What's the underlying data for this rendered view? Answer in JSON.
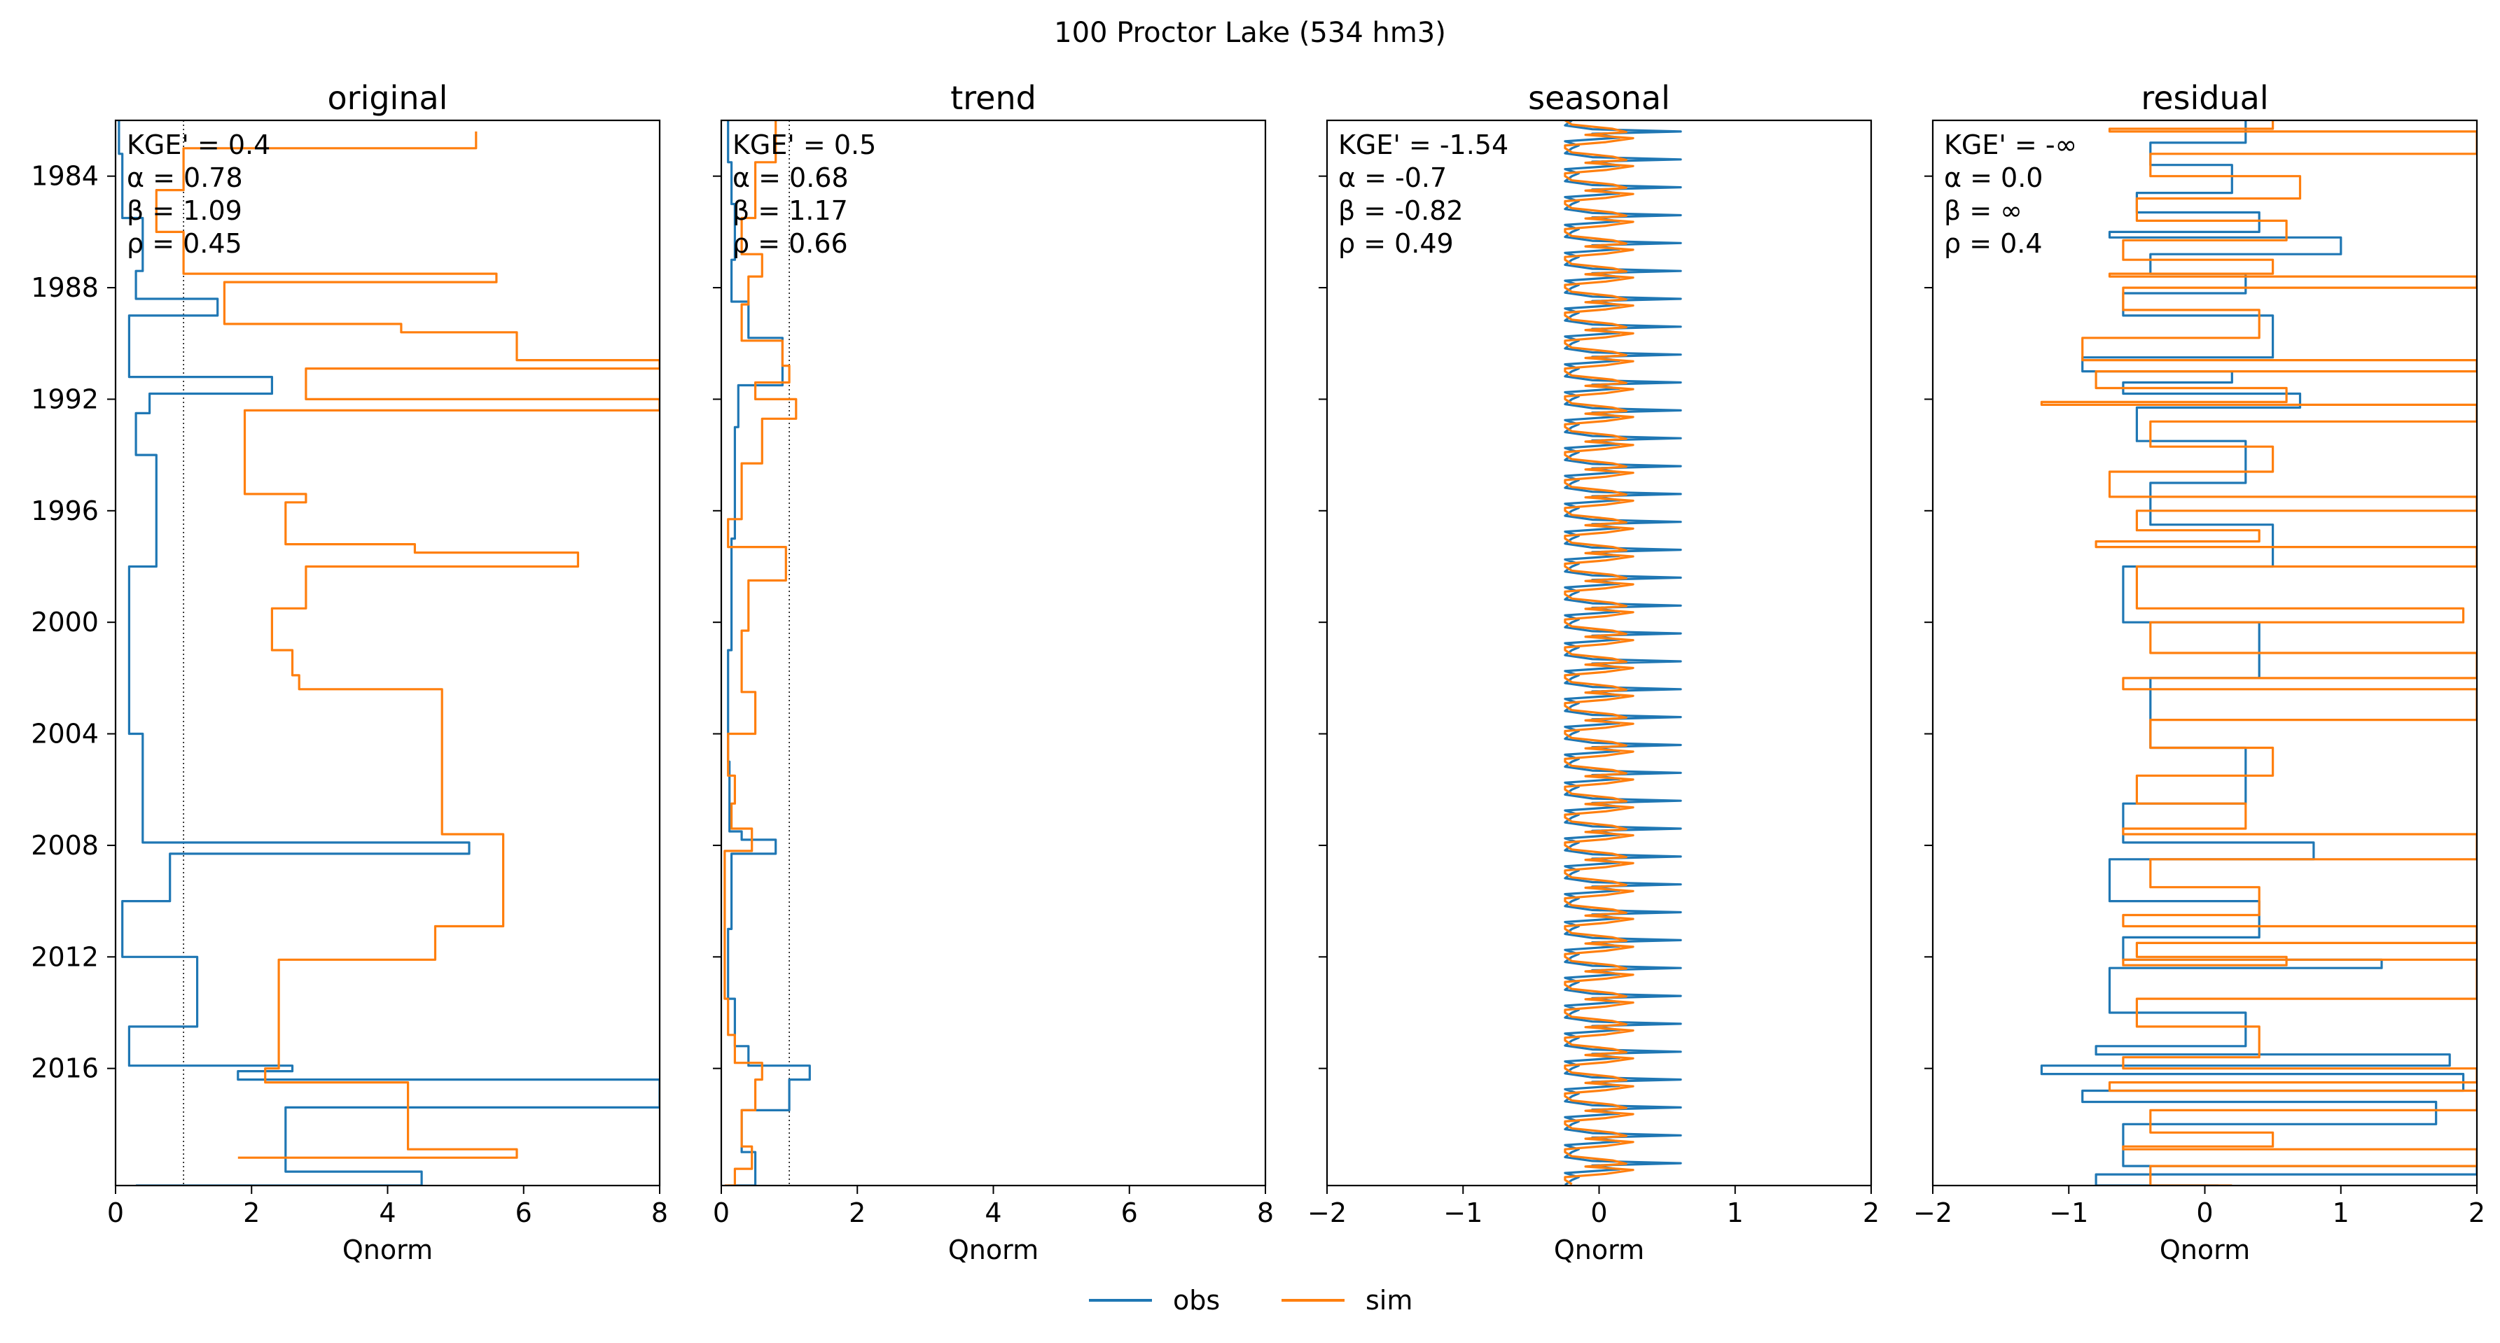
{
  "figure": {
    "suptitle": "100  Proctor Lake (534 hm3)",
    "legend": [
      {
        "label": "obs",
        "color": "#1f77b4"
      },
      {
        "label": "sim",
        "color": "#ff7f0e"
      }
    ]
  },
  "chart_data": [
    {
      "type": "line",
      "title": "original",
      "xlabel": "Qnorm",
      "xlim": [
        0,
        8
      ],
      "xticks": [
        0,
        2,
        4,
        6,
        8
      ],
      "ylim": [
        1982,
        2020.2
      ],
      "yticks": [
        1984,
        1988,
        1992,
        1996,
        2000,
        2004,
        2008,
        2012,
        2016
      ],
      "ref_line_x": 1,
      "metrics": [
        "KGE' = 0.4",
        "α = 0.78",
        "β = 1.09",
        "ρ = 0.45"
      ],
      "series": [
        {
          "name": "obs",
          "color": "#1f77b4",
          "points": [
            [
              0.05,
              1982.0
            ],
            [
              0.1,
              1983.2
            ],
            [
              0.4,
              1985.5
            ],
            [
              0.3,
              1987.4
            ],
            [
              1.5,
              1988.4
            ],
            [
              0.2,
              1989.0
            ],
            [
              2.3,
              1991.2
            ],
            [
              0.5,
              1991.8
            ],
            [
              0.3,
              1992.5
            ],
            [
              0.6,
              1994.0
            ],
            [
              0.2,
              1998.0
            ],
            [
              0.4,
              2004.0
            ],
            [
              5.2,
              2007.9
            ],
            [
              0.8,
              2008.3
            ],
            [
              0.1,
              2010.0
            ],
            [
              1.2,
              2012.0
            ],
            [
              0.2,
              2014.5
            ],
            [
              2.6,
              2015.9
            ],
            [
              1.8,
              2016.1
            ],
            [
              8.0,
              2016.4
            ],
            [
              2.5,
              2017.4
            ],
            [
              4.5,
              2019.7
            ],
            [
              0.3,
              2020.2
            ]
          ]
        },
        {
          "name": "sim",
          "color": "#ff7f0e",
          "points": [
            [
              5.3,
              1982.4
            ],
            [
              1.0,
              1983.0
            ],
            [
              0.6,
              1984.5
            ],
            [
              1.0,
              1986.0
            ],
            [
              5.6,
              1987.5
            ],
            [
              1.6,
              1987.8
            ],
            [
              4.2,
              1989.3
            ],
            [
              5.9,
              1989.6
            ],
            [
              8.0,
              1990.6
            ],
            [
              2.8,
              1990.9
            ],
            [
              8.0,
              1992.0
            ],
            [
              1.9,
              1992.4
            ],
            [
              2.8,
              1995.4
            ],
            [
              2.5,
              1995.7
            ],
            [
              4.4,
              1997.2
            ],
            [
              6.8,
              1997.5
            ],
            [
              2.8,
              1998.0
            ],
            [
              2.3,
              1999.5
            ],
            [
              2.6,
              2001.0
            ],
            [
              2.7,
              2001.9
            ],
            [
              4.8,
              2002.4
            ],
            [
              5.7,
              2007.6
            ],
            [
              4.7,
              2010.9
            ],
            [
              2.4,
              2012.1
            ],
            [
              2.2,
              2016.0
            ],
            [
              4.3,
              2016.5
            ],
            [
              5.9,
              2018.9
            ],
            [
              1.8,
              2019.2
            ]
          ]
        }
      ]
    },
    {
      "type": "line",
      "title": "trend",
      "xlabel": "Qnorm",
      "xlim": [
        0,
        8
      ],
      "xticks": [
        0,
        2,
        4,
        6,
        8
      ],
      "ylim": [
        1982,
        2020.2
      ],
      "ref_line_x": 1,
      "metrics": [
        "KGE' = 0.5",
        "α = 0.68",
        "β = 1.17",
        "ρ = 0.66"
      ],
      "series": [
        {
          "name": "obs",
          "color": "#1f77b4",
          "points": [
            [
              0.1,
              1982.0
            ],
            [
              0.15,
              1983.5
            ],
            [
              0.2,
              1985.0
            ],
            [
              0.15,
              1987.0
            ],
            [
              0.4,
              1988.5
            ],
            [
              0.9,
              1989.8
            ],
            [
              0.9,
              1990.6
            ],
            [
              0.25,
              1991.5
            ],
            [
              0.2,
              1993.0
            ],
            [
              0.15,
              1997.0
            ],
            [
              0.1,
              2001.0
            ],
            [
              0.12,
              2005.0
            ],
            [
              0.3,
              2007.5
            ],
            [
              0.8,
              2007.8
            ],
            [
              0.15,
              2008.3
            ],
            [
              0.1,
              2011.0
            ],
            [
              0.2,
              2013.5
            ],
            [
              0.4,
              2015.2
            ],
            [
              1.3,
              2015.9
            ],
            [
              1.0,
              2016.4
            ],
            [
              0.3,
              2017.5
            ],
            [
              0.5,
              2019.0
            ],
            [
              0.1,
              2020.2
            ]
          ]
        },
        {
          "name": "sim",
          "color": "#ff7f0e",
          "points": [
            [
              0.8,
              1982.0
            ],
            [
              0.5,
              1983.5
            ],
            [
              0.3,
              1985.5
            ],
            [
              0.6,
              1986.8
            ],
            [
              0.4,
              1987.6
            ],
            [
              0.3,
              1988.6
            ],
            [
              0.9,
              1989.9
            ],
            [
              1.0,
              1990.8
            ],
            [
              0.5,
              1991.4
            ],
            [
              1.1,
              1992.0
            ],
            [
              0.6,
              1992.7
            ],
            [
              0.3,
              1994.3
            ],
            [
              0.1,
              1996.3
            ],
            [
              0.95,
              1997.3
            ],
            [
              0.4,
              1998.5
            ],
            [
              0.3,
              2000.3
            ],
            [
              0.5,
              2002.5
            ],
            [
              0.1,
              2004.0
            ],
            [
              0.2,
              2005.5
            ],
            [
              0.15,
              2006.5
            ],
            [
              0.45,
              2007.4
            ],
            [
              0.05,
              2008.2
            ],
            [
              0.05,
              2012.0
            ],
            [
              0.1,
              2013.5
            ],
            [
              0.2,
              2014.8
            ],
            [
              0.6,
              2015.8
            ],
            [
              0.5,
              2016.4
            ],
            [
              0.3,
              2017.5
            ],
            [
              0.45,
              2018.8
            ],
            [
              0.2,
              2019.6
            ],
            [
              0.05,
              2020.2
            ]
          ]
        }
      ]
    },
    {
      "type": "line",
      "title": "seasonal",
      "xlabel": "Qnorm",
      "xlim": [
        -2,
        2
      ],
      "xticks": [
        -2,
        -1,
        0,
        1,
        2
      ],
      "ylim": [
        1982,
        2020.2
      ],
      "metrics": [
        "KGE' = -1.54",
        "α = -0.7",
        "β = -0.82",
        "ρ = 0.49"
      ],
      "series": [
        {
          "name": "obs",
          "color": "#1f77b4",
          "cycle": {
            "start": 1982.0,
            "end": 2020.2,
            "period": 1,
            "profile": [
              [
                -0.2,
                0
              ],
              [
                -0.25,
                0.18
              ],
              [
                -0.05,
                0.32
              ],
              [
                0.6,
                0.4
              ],
              [
                -0.05,
                0.48
              ],
              [
                0.15,
                0.62
              ],
              [
                -0.25,
                0.75
              ],
              [
                -0.15,
                0.9
              ],
              [
                -0.2,
                1
              ]
            ]
          }
        },
        {
          "name": "sim",
          "color": "#ff7f0e",
          "cycle": {
            "start": 1982.0,
            "end": 2020.2,
            "period": 1,
            "profile": [
              [
                -0.25,
                0
              ],
              [
                -0.2,
                0.15
              ],
              [
                0.1,
                0.3
              ],
              [
                0.2,
                0.42
              ],
              [
                -0.1,
                0.52
              ],
              [
                0.25,
                0.64
              ],
              [
                0.05,
                0.78
              ],
              [
                -0.25,
                0.9
              ],
              [
                -0.25,
                1
              ]
            ]
          }
        }
      ]
    },
    {
      "type": "line",
      "title": "residual",
      "xlabel": "Qnorm",
      "xlim": [
        -2,
        2
      ],
      "xticks": [
        -2,
        -1,
        0,
        1,
        2
      ],
      "ylim": [
        1982,
        2020.2
      ],
      "metrics": [
        "KGE' = -∞",
        "α = 0.0",
        "β = ∞",
        "ρ = 0.4"
      ],
      "series": [
        {
          "name": "obs",
          "color": "#1f77b4",
          "points": [
            [
              0.3,
              1982.0
            ],
            [
              -0.4,
              1982.8
            ],
            [
              0.2,
              1983.6
            ],
            [
              -0.5,
              1984.6
            ],
            [
              0.4,
              1985.3
            ],
            [
              -0.7,
              1986.0
            ],
            [
              1.0,
              1986.2
            ],
            [
              -0.4,
              1986.8
            ],
            [
              0.3,
              1987.5
            ],
            [
              -0.6,
              1988.2
            ],
            [
              0.5,
              1989.0
            ],
            [
              -0.9,
              1990.5
            ],
            [
              0.2,
              1991.0
            ],
            [
              -0.6,
              1991.4
            ],
            [
              0.7,
              1991.8
            ],
            [
              -0.5,
              1992.3
            ],
            [
              0.3,
              1993.5
            ],
            [
              -0.4,
              1995.0
            ],
            [
              0.5,
              1996.5
            ],
            [
              -0.6,
              1998.0
            ],
            [
              0.4,
              2000.0
            ],
            [
              -0.4,
              2002.0
            ],
            [
              0.3,
              2004.5
            ],
            [
              -0.6,
              2006.5
            ],
            [
              0.8,
              2007.9
            ],
            [
              -0.7,
              2008.5
            ],
            [
              0.4,
              2010.0
            ],
            [
              -0.6,
              2011.3
            ],
            [
              1.3,
              2012.1
            ],
            [
              -0.7,
              2012.4
            ],
            [
              0.3,
              2014.0
            ],
            [
              -0.8,
              2015.2
            ],
            [
              1.8,
              2015.5
            ],
            [
              -1.2,
              2015.9
            ],
            [
              1.9,
              2016.2
            ],
            [
              -0.9,
              2016.8
            ],
            [
              1.7,
              2017.2
            ],
            [
              -0.6,
              2018.0
            ],
            [
              2.0,
              2019.5
            ],
            [
              -0.8,
              2019.8
            ],
            [
              0.1,
              2020.2
            ]
          ]
        },
        {
          "name": "sim",
          "color": "#ff7f0e",
          "points": [
            [
              0.5,
              1982.0
            ],
            [
              -0.7,
              1982.3
            ],
            [
              2.0,
              1982.4
            ],
            [
              -0.4,
              1983.2
            ],
            [
              0.7,
              1984.0
            ],
            [
              -0.5,
              1984.8
            ],
            [
              0.6,
              1985.6
            ],
            [
              -0.6,
              1986.3
            ],
            [
              0.5,
              1987.0
            ],
            [
              -0.7,
              1987.5
            ],
            [
              2.0,
              1987.6
            ],
            [
              -0.6,
              1988.0
            ],
            [
              0.4,
              1988.8
            ],
            [
              -0.9,
              1989.8
            ],
            [
              2.0,
              1990.6
            ],
            [
              -0.8,
              1991.0
            ],
            [
              0.6,
              1991.6
            ],
            [
              -1.2,
              1992.1
            ],
            [
              2.0,
              1992.2
            ],
            [
              -0.4,
              1992.8
            ],
            [
              0.5,
              1993.7
            ],
            [
              -0.7,
              1994.6
            ],
            [
              2.0,
              1995.5
            ],
            [
              -0.5,
              1996.0
            ],
            [
              0.4,
              1996.7
            ],
            [
              -0.8,
              1997.1
            ],
            [
              2.0,
              1997.3
            ],
            [
              -0.5,
              1998.0
            ],
            [
              1.9,
              1999.5
            ],
            [
              -0.4,
              2000.0
            ],
            [
              2.0,
              2001.1
            ],
            [
              -0.6,
              2002.0
            ],
            [
              2.0,
              2002.4
            ],
            [
              -0.4,
              2003.5
            ],
            [
              0.5,
              2004.5
            ],
            [
              -0.5,
              2005.5
            ],
            [
              0.3,
              2006.5
            ],
            [
              -0.6,
              2007.4
            ],
            [
              2.0,
              2007.6
            ],
            [
              -0.4,
              2008.5
            ],
            [
              0.4,
              2009.5
            ],
            [
              -0.6,
              2010.5
            ],
            [
              2.0,
              2010.9
            ],
            [
              -0.5,
              2011.5
            ],
            [
              0.6,
              2012.0
            ],
            [
              -0.6,
              2012.3
            ],
            [
              2.0,
              2012.1
            ],
            [
              -0.5,
              2013.5
            ],
            [
              0.4,
              2014.5
            ],
            [
              -0.6,
              2015.6
            ],
            [
              2.0,
              2016.0
            ],
            [
              -0.7,
              2016.5
            ],
            [
              2.0,
              2016.8
            ],
            [
              -0.4,
              2017.5
            ],
            [
              0.5,
              2018.3
            ],
            [
              -0.6,
              2018.8
            ],
            [
              2.0,
              2018.9
            ],
            [
              -0.4,
              2019.5
            ],
            [
              0.2,
              2020.2
            ]
          ]
        }
      ]
    }
  ]
}
